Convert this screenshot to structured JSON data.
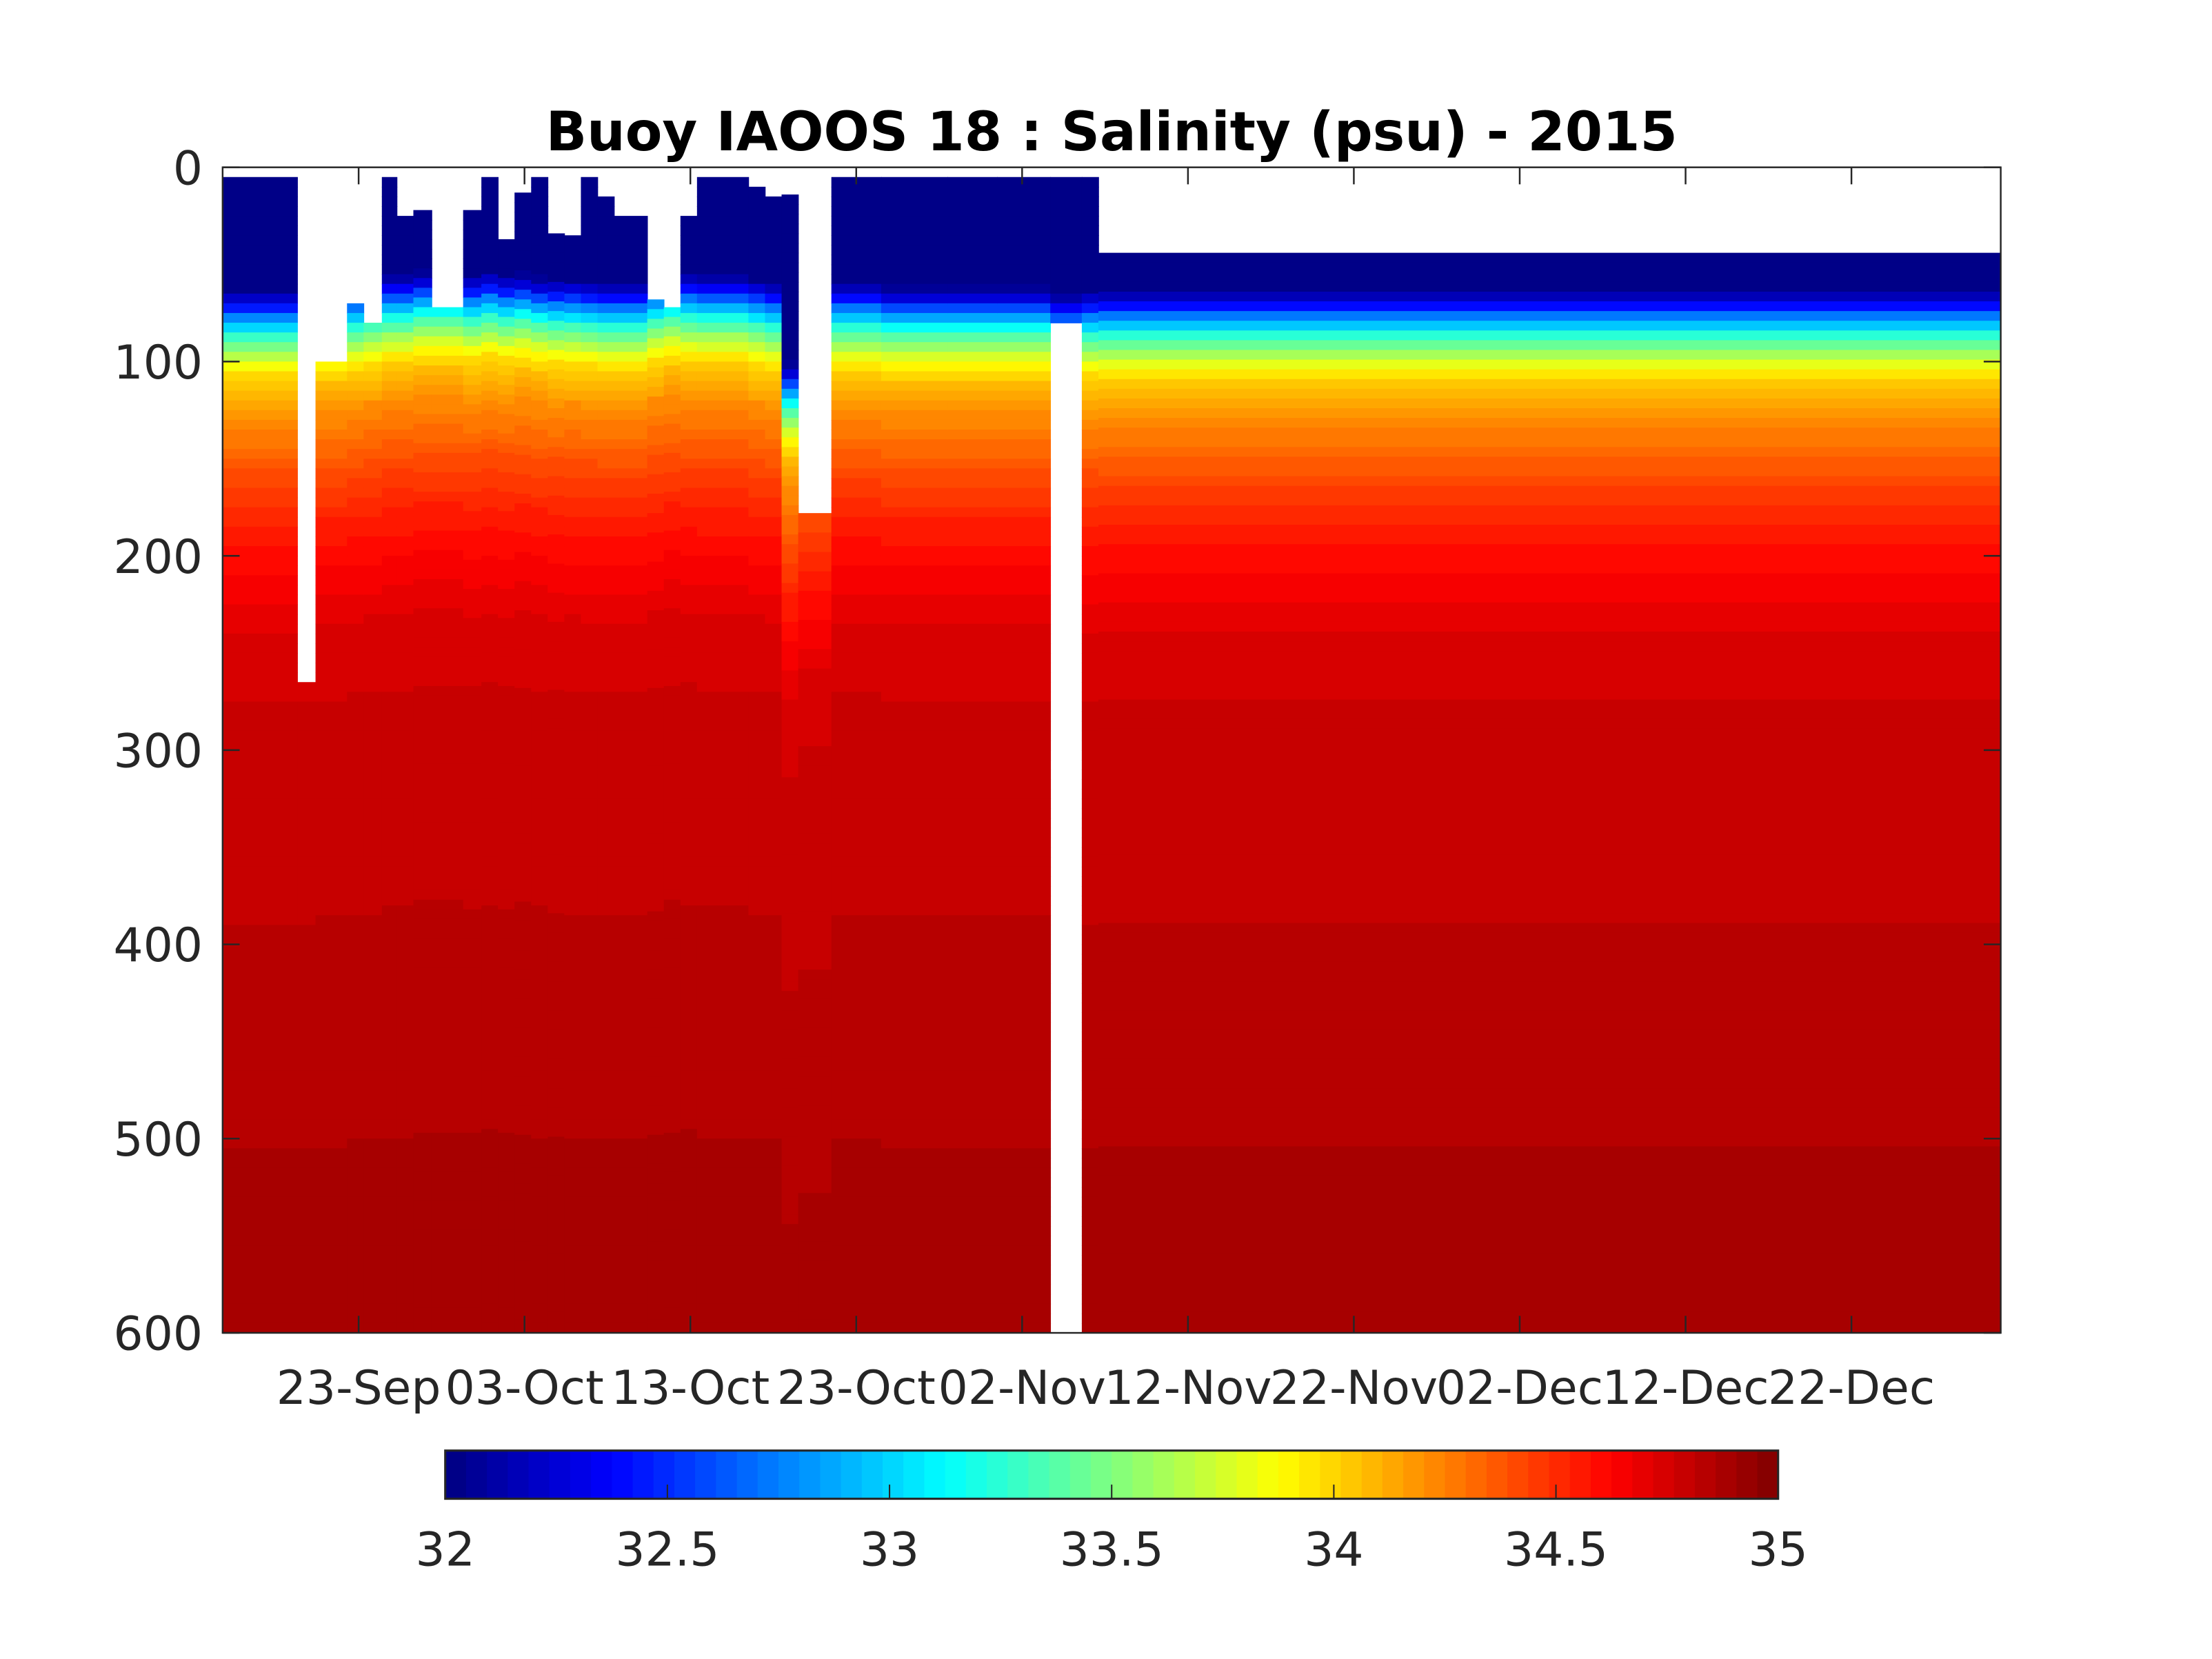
{
  "chart_data": {
    "type": "heatmap",
    "title": "Buoy IAOOS 18 : Salinity (psu) - 2015",
    "xlabel": "",
    "ylabel": "",
    "x_units": "days since 23-Sep-2015",
    "xlim": [
      -8.2,
      99.0
    ],
    "ylim": [
      600,
      0
    ],
    "y_direction": "reversed",
    "x_ticks": [
      0,
      10,
      20,
      30,
      40,
      50,
      60,
      70,
      80,
      90
    ],
    "x_tick_labels": [
      "23-Sep",
      "03-Oct",
      "13-Oct",
      "23-Oct",
      "02-Nov",
      "12-Nov",
      "22-Nov",
      "02-Dec",
      "12-Dec",
      "22-Dec"
    ],
    "y_ticks": [
      0,
      100,
      200,
      300,
      400,
      500,
      600
    ],
    "y_tick_labels": [
      "0",
      "100",
      "200",
      "300",
      "400",
      "500",
      "600"
    ],
    "colormap": "jet",
    "clim": [
      32,
      35
    ],
    "colorbar": {
      "placement": "bottom",
      "ticks": [
        32,
        32.5,
        33,
        33.5,
        34,
        34.5,
        35
      ],
      "tick_labels": [
        "32",
        "32.5",
        "33",
        "33.5",
        "34",
        "34.5",
        "35"
      ]
    },
    "reference_profile": {
      "depth": [
        0,
        55,
        62,
        70,
        80,
        90,
        100,
        120,
        150,
        180,
        200,
        230,
        280,
        350,
        500,
        600
      ],
      "salinity": [
        32.0,
        32.0,
        32.3,
        32.8,
        33.3,
        33.7,
        34.0,
        34.2,
        34.4,
        34.55,
        34.62,
        34.72,
        34.78,
        34.8,
        34.86,
        34.9
      ]
    },
    "profiles_columns": [
      "start_day",
      "end_day",
      "top_depth",
      "bottom_depth",
      "depth_shift"
    ],
    "profiles": [
      [
        -8.2,
        -3.7,
        5,
        600,
        8
      ],
      [
        -3.7,
        -2.6,
        265,
        600,
        8
      ],
      [
        -2.6,
        -0.7,
        100,
        600,
        6
      ],
      [
        -0.7,
        0.3,
        70,
        600,
        4
      ],
      [
        0.3,
        1.4,
        80,
        600,
        2
      ],
      [
        1.4,
        2.3,
        5,
        600,
        0
      ],
      [
        2.3,
        3.3,
        25,
        600,
        0
      ],
      [
        3.3,
        4.4,
        22,
        600,
        -2
      ],
      [
        4.4,
        6.3,
        72,
        600,
        -2
      ],
      [
        6.3,
        7.4,
        22,
        600,
        0
      ],
      [
        7.4,
        8.4,
        5,
        600,
        -2
      ],
      [
        8.4,
        9.4,
        37,
        600,
        0
      ],
      [
        9.4,
        10.4,
        13,
        600,
        -1
      ],
      [
        10.4,
        11.4,
        5,
        600,
        1
      ],
      [
        11.4,
        12.4,
        34,
        600,
        2
      ],
      [
        12.4,
        13.4,
        35,
        600,
        2
      ],
      [
        13.4,
        14.4,
        5,
        600,
        3
      ],
      [
        14.4,
        15.4,
        15,
        600,
        4
      ],
      [
        15.4,
        17.4,
        25,
        600,
        4
      ],
      [
        17.4,
        18.4,
        68,
        600,
        0
      ],
      [
        18.4,
        19.4,
        72,
        600,
        -2
      ],
      [
        19.4,
        20.4,
        25,
        600,
        -1
      ],
      [
        20.4,
        23.5,
        5,
        600,
        0
      ],
      [
        23.5,
        24.5,
        10,
        600,
        2
      ],
      [
        24.5,
        25.5,
        15,
        600,
        4
      ],
      [
        25.5,
        26.5,
        14,
        600,
        45
      ],
      [
        26.5,
        28.5,
        178,
        600,
        30
      ],
      [
        28.5,
        31.5,
        5,
        600,
        4
      ],
      [
        31.5,
        35.5,
        5,
        600,
        6
      ],
      [
        35.5,
        38.5,
        5,
        600,
        6
      ],
      [
        38.5,
        41.7,
        5,
        600,
        6
      ],
      [
        41.7,
        43.6,
        5,
        80,
        10
      ],
      [
        43.6,
        44.6,
        5,
        600,
        8
      ],
      [
        44.6,
        99.0,
        44,
        600,
        8
      ]
    ]
  }
}
